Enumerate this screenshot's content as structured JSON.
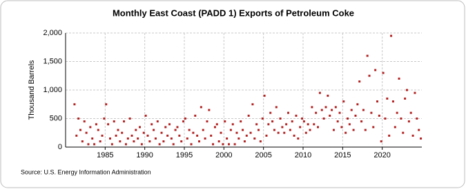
{
  "chart_data": {
    "type": "scatter",
    "title": "Monthly East Coast (PADD 1) Exports of Petroleum Coke",
    "y_label": "Thousand Barrels",
    "source": "Source: U.S. Energy Information Administration",
    "color": "#b22222",
    "grid": true,
    "xlim": [
      1980,
      2025
    ],
    "ylim": [
      0,
      2000
    ],
    "xticks": [
      1985,
      1990,
      1995,
      2000,
      2005,
      2010,
      2015,
      2020
    ],
    "yticks": [
      0,
      500,
      {
        "value": 1000,
        "label": "1,000"
      },
      {
        "value": 1500,
        "label": "1,500"
      },
      {
        "value": 2000,
        "label": "2,000"
      }
    ],
    "x": [
      1981.125,
      1981.375,
      1981.625,
      1981.875,
      1982.125,
      1982.375,
      1982.625,
      1982.875,
      1983.125,
      1983.375,
      1983.625,
      1983.875,
      1984.125,
      1984.375,
      1984.625,
      1984.875,
      1985.125,
      1985.375,
      1985.625,
      1985.875,
      1986.125,
      1986.375,
      1986.625,
      1986.875,
      1987.125,
      1987.375,
      1987.625,
      1987.875,
      1988.125,
      1988.375,
      1988.625,
      1988.875,
      1989.125,
      1989.375,
      1989.625,
      1989.875,
      1990.125,
      1990.375,
      1990.625,
      1990.875,
      1991.125,
      1991.375,
      1991.625,
      1991.875,
      1992.125,
      1992.375,
      1992.625,
      1992.875,
      1993.125,
      1993.375,
      1993.625,
      1993.875,
      1994.125,
      1994.375,
      1994.625,
      1994.875,
      1995.125,
      1995.375,
      1995.625,
      1995.875,
      1996.125,
      1996.375,
      1996.625,
      1996.875,
      1997.125,
      1997.375,
      1997.625,
      1997.875,
      1998.125,
      1998.375,
      1998.625,
      1998.875,
      1999.125,
      1999.375,
      1999.625,
      1999.875,
      2000.125,
      2000.375,
      2000.625,
      2000.875,
      2001.125,
      2001.375,
      2001.625,
      2001.875,
      2002.125,
      2002.375,
      2002.625,
      2002.875,
      2003.125,
      2003.375,
      2003.625,
      2003.875,
      2004.125,
      2004.375,
      2004.625,
      2004.875,
      2005.125,
      2005.375,
      2005.625,
      2005.875,
      2006.125,
      2006.375,
      2006.625,
      2006.875,
      2007.125,
      2007.375,
      2007.625,
      2007.875,
      2008.125,
      2008.375,
      2008.625,
      2008.875,
      2009.125,
      2009.375,
      2009.625,
      2009.875,
      2010.125,
      2010.375,
      2010.625,
      2010.875,
      2011.125,
      2011.375,
      2011.625,
      2011.875,
      2012.125,
      2012.375,
      2012.625,
      2012.875,
      2013.125,
      2013.375,
      2013.625,
      2013.875,
      2014.125,
      2014.375,
      2014.625,
      2014.875,
      2015.125,
      2015.375,
      2015.625,
      2015.875,
      2016.125,
      2016.375,
      2016.625,
      2016.875,
      2017.125,
      2017.375,
      2017.625,
      2017.875,
      2018.125,
      2018.375,
      2018.625,
      2018.875,
      2019.125,
      2019.375,
      2019.625,
      2019.875,
      2020.125,
      2020.375,
      2020.625,
      2020.875,
      2021.125,
      2021.375,
      2021.625,
      2021.875,
      2022.125,
      2022.375,
      2022.625,
      2022.875,
      2023.125,
      2023.375,
      2023.625,
      2023.875,
      2024.125,
      2024.375,
      2024.625,
      2024.875
    ],
    "values": [
      750,
      200,
      500,
      300,
      100,
      450,
      250,
      50,
      350,
      150,
      50,
      400,
      300,
      100,
      200,
      500,
      750,
      400,
      150,
      50,
      450,
      200,
      300,
      100,
      250,
      450,
      50,
      150,
      500,
      200,
      100,
      300,
      150,
      350,
      50,
      250,
      550,
      200,
      100,
      400,
      300,
      150,
      450,
      50,
      250,
      100,
      350,
      200,
      400,
      150,
      50,
      300,
      350,
      200,
      100,
      450,
      500,
      150,
      300,
      50,
      250,
      550,
      200,
      100,
      700,
      300,
      150,
      450,
      650,
      200,
      50,
      350,
      400,
      100,
      250,
      50,
      450,
      150,
      50,
      300,
      400,
      50,
      250,
      150,
      450,
      300,
      100,
      200,
      550,
      250,
      750,
      150,
      400,
      300,
      100,
      500,
      900,
      200,
      400,
      600,
      450,
      300,
      700,
      250,
      500,
      350,
      250,
      400,
      600,
      300,
      450,
      200,
      550,
      150,
      350,
      500,
      450,
      250,
      400,
      300,
      700,
      400,
      600,
      350,
      950,
      650,
      500,
      700,
      900,
      550,
      650,
      300,
      700,
      450,
      600,
      350,
      800,
      250,
      500,
      400,
      650,
      300,
      550,
      750,
      1150,
      450,
      650,
      300,
      1600,
      1250,
      600,
      350,
      1350,
      800,
      550,
      100,
      1300,
      500,
      850,
      200,
      1950,
      800,
      350,
      600,
      1200,
      500,
      250,
      850,
      1000,
      450,
      600,
      200,
      950,
      500,
      300,
      150
    ]
  }
}
